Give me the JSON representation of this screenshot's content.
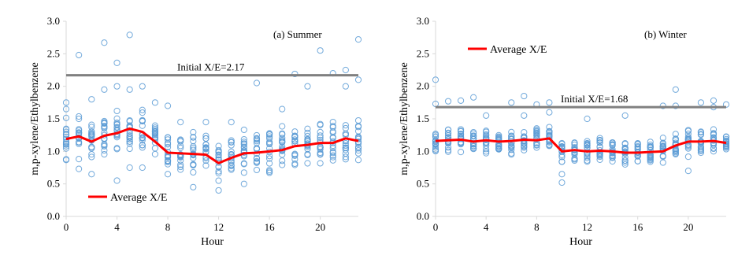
{
  "colors": {
    "scatter": "#5B9BD5",
    "average_line": "#FF0000",
    "initial_line": "#808080",
    "axis": "#d9d9d9"
  },
  "chart_data": [
    {
      "type": "scatter",
      "panel_label": "(a) Summer",
      "xlabel": "Hour",
      "ylabel": "m,p-xylene/Ethylbenzene",
      "xlim": [
        0,
        23
      ],
      "ylim": [
        0,
        3.0
      ],
      "x_ticks": [
        0,
        4,
        8,
        12,
        16,
        20
      ],
      "y_ticks": [
        "0.0",
        "0.5",
        "1.0",
        "1.5",
        "2.0",
        "2.5",
        "3.0"
      ],
      "grid": false,
      "legend": {
        "label": "Average X/E",
        "placement": "bottom-left"
      },
      "reference_line": {
        "label": "Initial X/E=2.17",
        "value": 2.17
      },
      "series": [
        {
          "name": "Average X/E",
          "type": "line",
          "x": [
            0,
            1,
            2,
            3,
            4,
            5,
            6,
            7,
            8,
            9,
            10,
            11,
            12,
            13,
            14,
            15,
            16,
            17,
            18,
            19,
            20,
            21,
            22,
            23
          ],
          "y": [
            1.19,
            1.23,
            1.15,
            1.24,
            1.28,
            1.35,
            1.3,
            1.15,
            0.98,
            0.97,
            0.96,
            0.95,
            0.82,
            0.9,
            0.97,
            0.98,
            1.0,
            1.02,
            1.08,
            1.1,
            1.13,
            1.13,
            1.2,
            1.16
          ]
        }
      ],
      "scatter_outliers": [
        {
          "x": 0,
          "y": 1.75
        },
        {
          "x": 0,
          "y": 1.65
        },
        {
          "x": 1,
          "y": 2.48
        },
        {
          "x": 1,
          "y": 0.73
        },
        {
          "x": 2,
          "y": 1.8
        },
        {
          "x": 2,
          "y": 0.65
        },
        {
          "x": 3,
          "y": 2.67
        },
        {
          "x": 3,
          "y": 1.95
        },
        {
          "x": 4,
          "y": 2.36
        },
        {
          "x": 4,
          "y": 2.0
        },
        {
          "x": 4,
          "y": 0.55
        },
        {
          "x": 5,
          "y": 2.79
        },
        {
          "x": 5,
          "y": 1.95
        },
        {
          "x": 5,
          "y": 0.75
        },
        {
          "x": 6,
          "y": 2.0
        },
        {
          "x": 6,
          "y": 0.75
        },
        {
          "x": 7,
          "y": 1.75
        },
        {
          "x": 8,
          "y": 1.7
        },
        {
          "x": 8,
          "y": 0.65
        },
        {
          "x": 9,
          "y": 1.45
        },
        {
          "x": 10,
          "y": 0.45
        },
        {
          "x": 11,
          "y": 1.45
        },
        {
          "x": 12,
          "y": 0.4
        },
        {
          "x": 13,
          "y": 1.45
        },
        {
          "x": 14,
          "y": 0.5
        },
        {
          "x": 15,
          "y": 2.05
        },
        {
          "x": 17,
          "y": 1.65
        },
        {
          "x": 18,
          "y": 2.19
        },
        {
          "x": 19,
          "y": 2.0
        },
        {
          "x": 20,
          "y": 2.55
        },
        {
          "x": 21,
          "y": 2.2
        },
        {
          "x": 22,
          "y": 2.25
        },
        {
          "x": 22,
          "y": 2.0
        },
        {
          "x": 23,
          "y": 2.72
        },
        {
          "x": 23,
          "y": 2.1
        }
      ]
    },
    {
      "type": "scatter",
      "panel_label": "(b) Winter",
      "xlabel": "Hour",
      "ylabel": "m,p-xylene/Ethylbenzene",
      "xlim": [
        0,
        23
      ],
      "ylim": [
        0,
        3.0
      ],
      "x_ticks": [
        0,
        4,
        8,
        12,
        16,
        20
      ],
      "y_ticks": [
        "0.0",
        "0.5",
        "1.0",
        "1.5",
        "2.0",
        "2.5",
        "3.0"
      ],
      "grid": false,
      "legend": {
        "label": "Average X/E",
        "placement": "top-left"
      },
      "reference_line": {
        "label": "Initial X/E=1.68",
        "value": 1.68
      },
      "series": [
        {
          "name": "Average X/E",
          "type": "line",
          "x": [
            0,
            1,
            2,
            3,
            4,
            5,
            6,
            7,
            8,
            9,
            10,
            11,
            12,
            13,
            14,
            15,
            16,
            17,
            18,
            19,
            20,
            21,
            22,
            23
          ],
          "y": [
            1.16,
            1.17,
            1.18,
            1.15,
            1.17,
            1.15,
            1.16,
            1.18,
            1.17,
            1.2,
            1.0,
            1.02,
            1.0,
            1.01,
            1.0,
            0.98,
            0.98,
            0.99,
            1.0,
            1.09,
            1.15,
            1.15,
            1.16,
            1.13
          ]
        }
      ],
      "scatter_outliers": [
        {
          "x": 0,
          "y": 2.1
        },
        {
          "x": 0,
          "y": 1.73
        },
        {
          "x": 1,
          "y": 1.77
        },
        {
          "x": 2,
          "y": 1.78
        },
        {
          "x": 3,
          "y": 1.83
        },
        {
          "x": 4,
          "y": 1.55
        },
        {
          "x": 6,
          "y": 1.75
        },
        {
          "x": 7,
          "y": 1.85
        },
        {
          "x": 7,
          "y": 1.55
        },
        {
          "x": 8,
          "y": 1.72
        },
        {
          "x": 9,
          "y": 1.75
        },
        {
          "x": 9,
          "y": 1.6
        },
        {
          "x": 10,
          "y": 0.52
        },
        {
          "x": 10,
          "y": 0.65
        },
        {
          "x": 12,
          "y": 1.5
        },
        {
          "x": 15,
          "y": 1.55
        },
        {
          "x": 18,
          "y": 1.7
        },
        {
          "x": 19,
          "y": 1.95
        },
        {
          "x": 19,
          "y": 1.7
        },
        {
          "x": 20,
          "y": 0.7
        },
        {
          "x": 21,
          "y": 1.75
        },
        {
          "x": 22,
          "y": 1.78
        },
        {
          "x": 22,
          "y": 1.68
        },
        {
          "x": 23,
          "y": 1.72
        }
      ]
    }
  ]
}
